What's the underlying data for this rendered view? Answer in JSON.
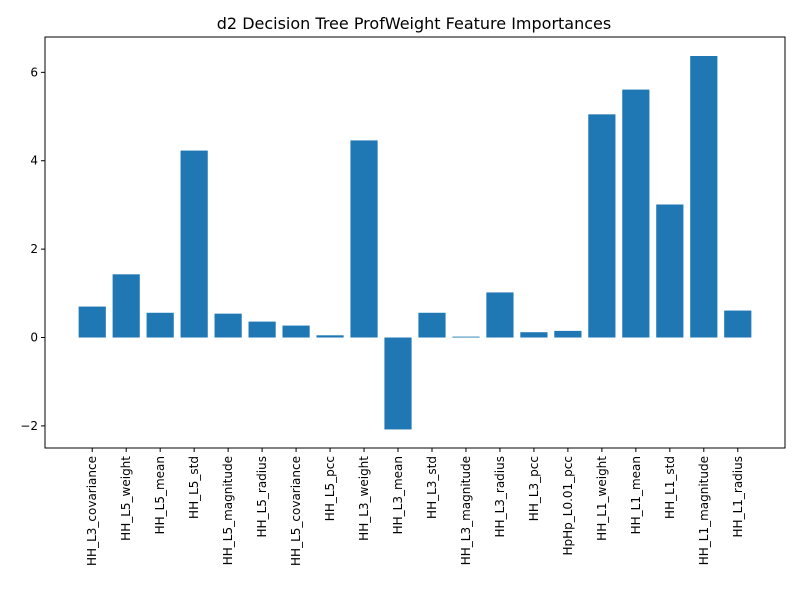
{
  "chart_data": {
    "type": "bar",
    "title": "d2 Decision Tree ProfWeight Feature Importances",
    "xlabel": "",
    "ylabel": "",
    "categories": [
      "HH_L3_covariance",
      "HH_L5_weight",
      "HH_L5_mean",
      "HH_L5_std",
      "HH_L5_magnitude",
      "HH_L5_radius",
      "HH_L5_covariance",
      "HH_L5_pcc",
      "HH_L3_weight",
      "HH_L3_mean",
      "HH_L3_std",
      "HH_L3_magnitude",
      "HH_L3_radius",
      "HH_L3_pcc",
      "HpHp_L0.01_pcc",
      "HH_L1_weight",
      "HH_L1_mean",
      "HH_L1_std",
      "HH_L1_magnitude",
      "HH_L1_radius"
    ],
    "values": [
      0.7,
      1.43,
      0.56,
      4.23,
      0.54,
      0.36,
      0.27,
      0.05,
      4.46,
      -2.08,
      0.56,
      0.02,
      1.02,
      0.12,
      0.15,
      5.05,
      5.61,
      3.01,
      6.37,
      0.61
    ],
    "ylim": [
      -2.5,
      6.8
    ],
    "yticks": [
      -2,
      0,
      2,
      4,
      6
    ],
    "ytick_labels": [
      "−2",
      "0",
      "2",
      "4",
      "6"
    ],
    "grid": false,
    "legend": "none",
    "colors": {
      "bar": "#1f77b4",
      "axis": "#000000",
      "background": "#ffffff"
    }
  }
}
